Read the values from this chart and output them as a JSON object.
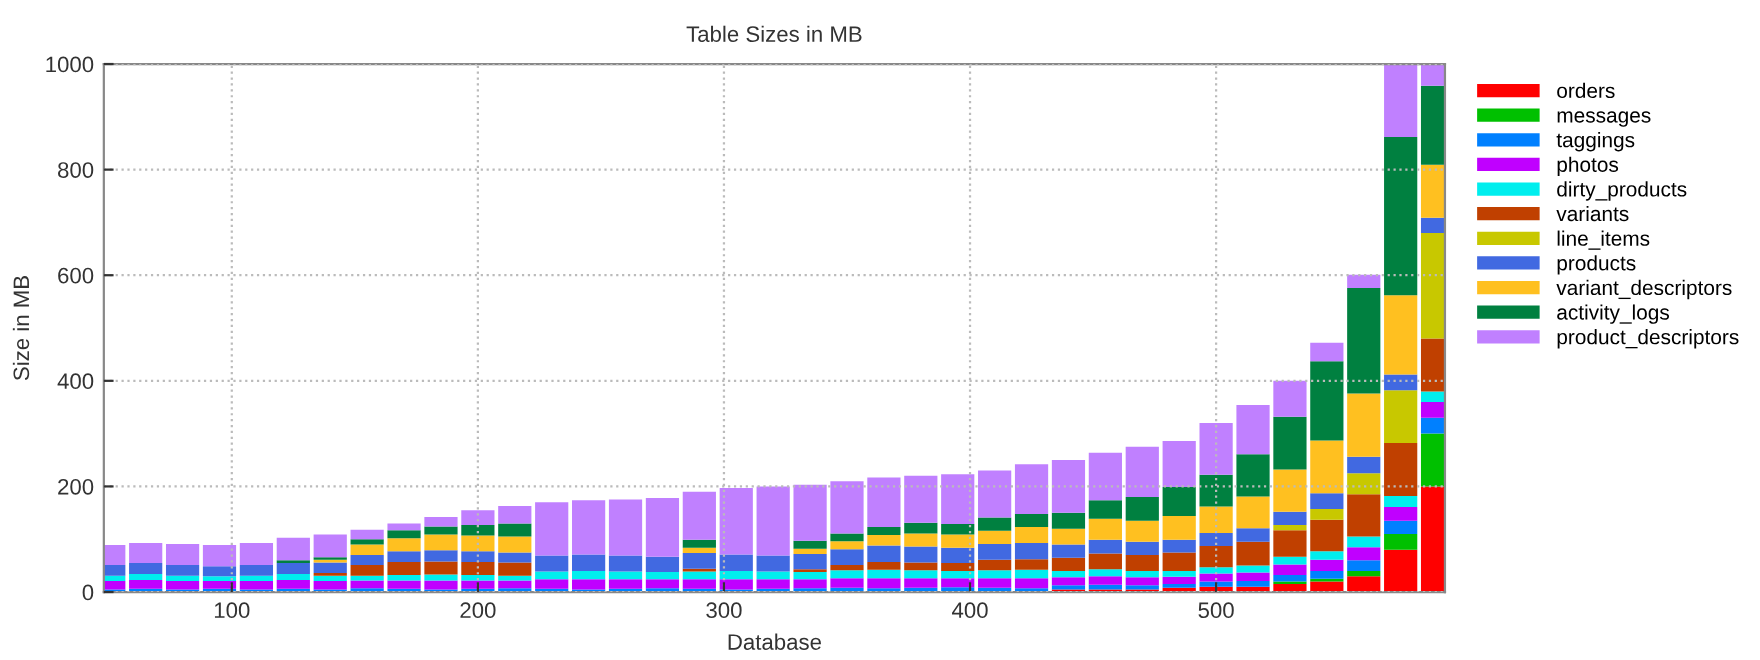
{
  "chart_data": {
    "type": "bar",
    "stacked": true,
    "title": "Table Sizes in MB",
    "xlabel": "Database",
    "ylabel": "Size in MB",
    "x": [
      50,
      65,
      80,
      95,
      110,
      125,
      140,
      155,
      170,
      185,
      200,
      215,
      230,
      245,
      260,
      275,
      290,
      305,
      320,
      335,
      350,
      365,
      380,
      395,
      410,
      425,
      440,
      455,
      470,
      485,
      500,
      515,
      530,
      545,
      560,
      575,
      590
    ],
    "xlim": [
      48,
      593
    ],
    "xticks": [
      100,
      200,
      300,
      400,
      500
    ],
    "ylim": [
      0,
      1000
    ],
    "yticks": [
      0,
      200,
      400,
      600,
      800,
      1000
    ],
    "grid": true,
    "legend": "top right",
    "series": [
      {
        "name": "orders",
        "color": "#ff0000",
        "values": [
          0,
          0,
          0,
          0,
          0,
          0,
          0,
          0,
          0,
          0,
          0,
          0,
          0,
          0,
          0,
          0,
          0,
          0,
          0,
          0,
          0,
          0,
          0,
          0,
          0,
          0,
          5,
          5,
          5,
          8,
          10,
          10,
          15,
          20,
          30,
          80,
          200
        ]
      },
      {
        "name": "messages",
        "color": "#00c000",
        "values": [
          0,
          0,
          0,
          0,
          0,
          0,
          0,
          0,
          0,
          0,
          0,
          0,
          0,
          0,
          0,
          0,
          0,
          0,
          0,
          0,
          0,
          0,
          0,
          0,
          0,
          0,
          0,
          0,
          0,
          0,
          0,
          0,
          5,
          5,
          10,
          30,
          100
        ]
      },
      {
        "name": "taggings",
        "color": "#0080ff",
        "values": [
          5,
          6,
          5,
          6,
          5,
          6,
          5,
          7,
          6,
          5,
          6,
          7,
          6,
          5,
          6,
          7,
          6,
          5,
          6,
          7,
          8,
          7,
          8,
          9,
          8,
          7,
          8,
          9,
          8,
          7,
          10,
          11,
          12,
          15,
          20,
          25,
          30
        ]
      },
      {
        "name": "photos",
        "color": "#c000ff",
        "values": [
          16,
          17,
          16,
          15,
          16,
          17,
          16,
          15,
          16,
          17,
          16,
          15,
          18,
          19,
          18,
          17,
          18,
          19,
          18,
          17,
          18,
          19,
          18,
          17,
          18,
          19,
          15,
          16,
          15,
          14,
          15,
          16,
          20,
          21,
          25,
          26,
          30
        ]
      },
      {
        "name": "dirty_products",
        "color": "#00eeee",
        "values": [
          10,
          11,
          10,
          9,
          10,
          11,
          10,
          9,
          10,
          11,
          10,
          9,
          15,
          16,
          15,
          14,
          15,
          16,
          15,
          14,
          15,
          16,
          15,
          14,
          15,
          16,
          12,
          13,
          12,
          11,
          12,
          13,
          15,
          16,
          20,
          21,
          20
        ]
      },
      {
        "name": "variants",
        "color": "#c04000",
        "values": [
          0,
          0,
          0,
          0,
          0,
          0,
          5,
          20,
          25,
          25,
          25,
          25,
          0,
          0,
          0,
          0,
          5,
          0,
          0,
          5,
          10,
          15,
          15,
          15,
          20,
          20,
          25,
          30,
          30,
          35,
          40,
          45,
          50,
          60,
          80,
          100,
          100
        ]
      },
      {
        "name": "line_items",
        "color": "#c8c800",
        "values": [
          0,
          0,
          0,
          0,
          0,
          0,
          0,
          0,
          0,
          0,
          0,
          0,
          0,
          0,
          0,
          0,
          0,
          0,
          0,
          0,
          0,
          0,
          0,
          0,
          0,
          0,
          0,
          0,
          0,
          0,
          0,
          0,
          10,
          20,
          40,
          100,
          200
        ]
      },
      {
        "name": "products",
        "color": "#4169e1",
        "values": [
          20,
          21,
          20,
          19,
          20,
          21,
          20,
          19,
          20,
          21,
          20,
          19,
          30,
          31,
          30,
          29,
          30,
          31,
          30,
          29,
          30,
          31,
          30,
          29,
          30,
          31,
          25,
          26,
          25,
          24,
          25,
          26,
          25,
          30,
          31,
          30,
          29
        ]
      },
      {
        "name": "variant_descriptors",
        "color": "#ffc020",
        "values": [
          0,
          0,
          0,
          0,
          0,
          0,
          5,
          20,
          25,
          30,
          30,
          30,
          0,
          0,
          0,
          0,
          10,
          0,
          0,
          10,
          15,
          20,
          25,
          25,
          25,
          30,
          30,
          40,
          40,
          45,
          50,
          60,
          80,
          100,
          120,
          150,
          100
        ]
      },
      {
        "name": "activity_logs",
        "color": "#008040",
        "values": [
          0,
          0,
          0,
          0,
          0,
          5,
          5,
          10,
          15,
          15,
          20,
          25,
          0,
          0,
          0,
          0,
          15,
          0,
          0,
          15,
          15,
          15,
          20,
          20,
          25,
          25,
          30,
          35,
          45,
          55,
          60,
          80,
          100,
          150,
          200,
          300,
          150
        ]
      },
      {
        "name": "product_descriptors",
        "color": "#c080ff",
        "values": [
          38,
          38,
          40,
          40,
          42,
          43,
          43,
          18,
          13,
          18,
          28,
          33,
          101,
          103,
          106,
          111,
          91,
          126,
          131,
          106,
          99,
          94,
          89,
          94,
          89,
          94,
          100,
          90,
          95,
          87,
          98,
          93,
          68,
          35,
          25,
          140,
          40
        ]
      }
    ]
  }
}
